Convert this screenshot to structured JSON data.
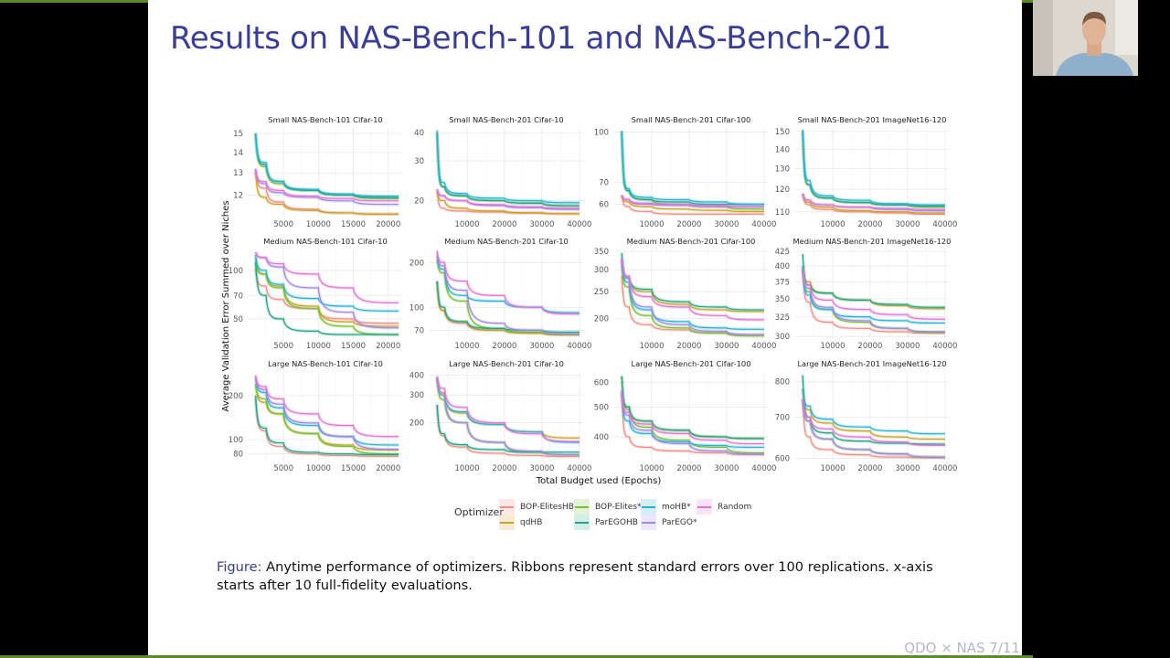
{
  "slide": {
    "title": "Results on NAS-Bench-101 and NAS-Bench-201",
    "caption_label": "Figure:",
    "caption_text": " Anytime performance of optimizers. Ribbons represent standard errors over 100 replications. x-axis starts after 10 full-fidelity evaluations.",
    "footer": "QDO × NAS 7/11"
  },
  "colors": {
    "title": "#3a3d96",
    "accent_bar": "#5a8a2a"
  },
  "chart_data": {
    "type": "line",
    "ylabel": "Average Validation Error Summed over Niches",
    "xlabel": "Total Budget used (Epochs)",
    "legend": {
      "title": "Optimizer",
      "placement": "bottom",
      "entries": [
        {
          "name": "BOP-ElitesHB",
          "color": "#ef8f86"
        },
        {
          "name": "qdHB",
          "color": "#c9a227"
        },
        {
          "name": "BOP-Elites*",
          "color": "#78bf35"
        },
        {
          "name": "ParEGOHB",
          "color": "#22a487"
        },
        {
          "name": "moHB*",
          "color": "#26b3d6"
        },
        {
          "name": "ParEGO*",
          "color": "#9f88e6"
        },
        {
          "name": "Random",
          "color": "#e274d4"
        }
      ]
    },
    "grid": true,
    "y_scale": "log",
    "panels": [
      {
        "title": "Small NAS-Bench-101 Cifar-10",
        "xlim": [
          0,
          22000
        ],
        "xticks": [
          5000,
          10000,
          15000,
          20000
        ],
        "ylim": [
          11.1,
          15.3
        ],
        "yticks": [
          12,
          13,
          14,
          15
        ],
        "x": [
          1000,
          2500,
          5000,
          10000,
          15000,
          21500
        ],
        "series": [
          [
            13.2,
            12.3,
            11.7,
            11.4,
            11.25,
            11.2
          ],
          [
            13,
            11.9,
            11.6,
            11.35,
            11.25,
            11.2
          ],
          [
            15,
            13.3,
            12.5,
            12.2,
            12,
            11.85
          ],
          [
            15,
            13.4,
            12.6,
            12.2,
            12,
            11.9
          ],
          [
            15,
            13.5,
            12.6,
            12.25,
            12.05,
            11.95
          ],
          [
            13.2,
            12.5,
            12.1,
            11.9,
            11.75,
            11.6
          ],
          [
            13.1,
            12.6,
            12.2,
            11.95,
            11.85,
            11.75
          ]
        ]
      },
      {
        "title": "Small NAS-Bench-201 Cifar-10",
        "xlim": [
          0,
          41000
        ],
        "xticks": [
          10000,
          20000,
          30000,
          40000
        ],
        "ylim": [
          17,
          42
        ],
        "yticks": [
          20,
          30,
          40
        ],
        "x": [
          2000,
          4000,
          10000,
          20000,
          30000,
          40000
        ],
        "series": [
          [
            22,
            18.5,
            18,
            17.8,
            17.6,
            17.5
          ],
          [
            22,
            20,
            18.5,
            18,
            17.7,
            17.5
          ],
          [
            40,
            23,
            21,
            20,
            19.5,
            19
          ],
          [
            40,
            23,
            21,
            20,
            19.5,
            19
          ],
          [
            41,
            24,
            21.5,
            20.5,
            20,
            19.6
          ],
          [
            22.5,
            21,
            20,
            19,
            18.6,
            18.3
          ],
          [
            22.5,
            21,
            20,
            19.2,
            18.8,
            18.5
          ]
        ]
      },
      {
        "title": "Small NAS-Bench-201 Cifar-100",
        "xlim": [
          0,
          41000
        ],
        "xticks": [
          10000,
          20000,
          30000,
          40000
        ],
        "ylim": [
          55,
          103
        ],
        "yticks": [
          60,
          70,
          100
        ],
        "x": [
          2000,
          4000,
          10000,
          20000,
          30000,
          40000
        ],
        "series": [
          [
            64,
            59,
            57,
            56,
            56,
            56
          ],
          [
            64,
            61,
            59,
            58,
            57.5,
            57
          ],
          [
            100,
            66,
            62,
            60,
            59,
            58
          ],
          [
            100,
            66,
            62,
            61,
            60,
            60
          ],
          [
            101,
            67,
            63,
            62,
            61,
            60
          ],
          [
            64,
            62,
            60,
            59.5,
            59,
            59
          ],
          [
            64,
            62,
            60.5,
            60,
            59.5,
            59
          ]
        ]
      },
      {
        "title": "Small NAS-Bench-201 ImageNet16-120",
        "xlim": [
          0,
          41000
        ],
        "xticks": [
          10000,
          20000,
          30000,
          40000
        ],
        "ylim": [
          108,
          152
        ],
        "yticks": [
          110,
          120,
          130,
          140,
          150
        ],
        "x": [
          2000,
          4000,
          10000,
          20000,
          30000,
          40000
        ],
        "series": [
          [
            118,
            113,
            111,
            110,
            109.5,
            109
          ],
          [
            118,
            114,
            112,
            110.5,
            110,
            109.5
          ],
          [
            150,
            122,
            116,
            114,
            113,
            112
          ],
          [
            150,
            122,
            116,
            114,
            113,
            112.5
          ],
          [
            151,
            124,
            117,
            115,
            113.5,
            113
          ],
          [
            118,
            115,
            113,
            112,
            111,
            110.5
          ],
          [
            118,
            115,
            113,
            112,
            111.5,
            111
          ]
        ]
      },
      {
        "title": "Medium NAS-Bench-101 Cifar-10",
        "xlim": [
          0,
          22000
        ],
        "xticks": [
          5000,
          10000,
          15000,
          20000
        ],
        "ylim": [
          38,
          135
        ],
        "yticks": [
          50,
          70,
          100
        ],
        "x": [
          1000,
          2500,
          5000,
          10000,
          15000,
          21500
        ],
        "series": [
          [
            103,
            80,
            66,
            58,
            50,
            47
          ],
          [
            115,
            95,
            80,
            60,
            48,
            45
          ],
          [
            120,
            95,
            78,
            58,
            45,
            40
          ],
          [
            112,
            70,
            50,
            42,
            40,
            40
          ],
          [
            125,
            100,
            82,
            67,
            60,
            56
          ],
          [
            130,
            120,
            105,
            78,
            55,
            44
          ],
          [
            130,
            120,
            110,
            95,
            78,
            63
          ]
        ]
      },
      {
        "title": "Medium NAS-Bench-201 Cifar-10",
        "xlim": [
          0,
          41000
        ],
        "xticks": [
          10000,
          20000,
          30000,
          40000
        ],
        "ylim": [
          62,
          245
        ],
        "yticks": [
          70,
          100,
          200
        ],
        "x": [
          2000,
          4000,
          10000,
          20000,
          30000,
          40000
        ],
        "series": [
          [
            150,
            95,
            78,
            70,
            67,
            66
          ],
          [
            150,
            95,
            80,
            70,
            67,
            65
          ],
          [
            210,
            170,
            110,
            72,
            68,
            66
          ],
          [
            150,
            100,
            80,
            72,
            70,
            68
          ],
          [
            220,
            180,
            120,
            110,
            100,
            92
          ],
          [
            230,
            190,
            130,
            78,
            70,
            66
          ],
          [
            240,
            200,
            150,
            120,
            100,
            90
          ]
        ]
      },
      {
        "title": "Medium NAS-Bench-201 Cifar-100",
        "xlim": [
          0,
          41000
        ],
        "xticks": [
          10000,
          20000,
          30000,
          40000
        ],
        "ylim": [
          170,
          355
        ],
        "yticks": [
          200,
          250,
          300,
          350
        ],
        "x": [
          2000,
          4000,
          10000,
          20000,
          30000,
          40000
        ],
        "series": [
          [
            285,
            220,
            190,
            182,
            178,
            175
          ],
          [
            320,
            280,
            250,
            225,
            215,
            212
          ],
          [
            310,
            260,
            205,
            185,
            177,
            173
          ],
          [
            345,
            280,
            255,
            230,
            220,
            215
          ],
          [
            330,
            270,
            215,
            195,
            185,
            183
          ],
          [
            325,
            280,
            220,
            190,
            180,
            175
          ],
          [
            330,
            285,
            240,
            220,
            205,
            198
          ]
        ]
      },
      {
        "title": "Medium NAS-Bench-201 ImageNet16-120",
        "xlim": [
          0,
          41000
        ],
        "xticks": [
          10000,
          20000,
          30000,
          40000
        ],
        "ylim": [
          298,
          428
        ],
        "yticks": [
          300,
          325,
          350,
          375,
          400,
          425
        ],
        "x": [
          2000,
          4000,
          10000,
          20000,
          30000,
          40000
        ],
        "series": [
          [
            395,
            345,
            318,
            310,
            306,
            304
          ],
          [
            400,
            375,
            358,
            348,
            340,
            336
          ],
          [
            395,
            360,
            335,
            318,
            310,
            305
          ],
          [
            420,
            370,
            358,
            348,
            342,
            338
          ],
          [
            400,
            355,
            335,
            325,
            320,
            317
          ],
          [
            395,
            365,
            338,
            320,
            310,
            306
          ],
          [
            395,
            370,
            348,
            335,
            328,
            322
          ]
        ]
      },
      {
        "title": "Large NAS-Bench-101 Cifar-10",
        "xlim": [
          0,
          22000
        ],
        "xticks": [
          5000,
          10000,
          15000,
          20000
        ],
        "ylim": [
          72,
          290
        ],
        "yticks": [
          80,
          100,
          200
        ],
        "x": [
          1000,
          2500,
          5000,
          10000,
          15000,
          21500
        ],
        "series": [
          [
            190,
            115,
            90,
            80,
            78,
            77
          ],
          [
            240,
            180,
            150,
            110,
            92,
            85
          ],
          [
            235,
            190,
            150,
            110,
            90,
            80
          ],
          [
            200,
            120,
            95,
            82,
            80,
            79
          ],
          [
            260,
            210,
            165,
            125,
            105,
            92
          ],
          [
            270,
            220,
            175,
            130,
            105,
            86
          ],
          [
            275,
            230,
            190,
            150,
            125,
            105
          ]
        ]
      },
      {
        "title": "Large NAS-Bench-201 Cifar-10",
        "xlim": [
          0,
          41000
        ],
        "xticks": [
          10000,
          20000,
          30000,
          40000
        ],
        "ylim": [
          115,
          420
        ],
        "yticks": [
          200,
          300,
          400
        ],
        "x": [
          2000,
          4000,
          10000,
          20000,
          30000,
          40000
        ],
        "series": [
          [
            260,
            165,
            140,
            128,
            124,
            122
          ],
          [
            390,
            310,
            230,
            195,
            175,
            160
          ],
          [
            380,
            280,
            200,
            150,
            130,
            125
          ],
          [
            260,
            170,
            145,
            135,
            130,
            130
          ],
          [
            385,
            300,
            235,
            195,
            175,
            150
          ],
          [
            390,
            300,
            200,
            150,
            132,
            125
          ],
          [
            395,
            330,
            250,
            200,
            170,
            152
          ]
        ]
      },
      {
        "title": "Large NAS-Bench-201 Cifar-100",
        "xlim": [
          0,
          41000
        ],
        "xticks": [
          10000,
          20000,
          30000,
          40000
        ],
        "ylim": [
          335,
          650
        ],
        "yticks": [
          400,
          500,
          600
        ],
        "x": [
          2000,
          4000,
          10000,
          20000,
          30000,
          40000
        ],
        "series": [
          [
            550,
            400,
            370,
            360,
            355,
            350
          ],
          [
            630,
            490,
            450,
            420,
            400,
            395
          ],
          [
            560,
            500,
            430,
            390,
            370,
            355
          ],
          [
            630,
            500,
            450,
            420,
            400,
            395
          ],
          [
            560,
            450,
            410,
            385,
            375,
            370
          ],
          [
            570,
            470,
            420,
            380,
            360,
            352
          ],
          [
            550,
            480,
            440,
            410,
            390,
            380
          ]
        ]
      },
      {
        "title": "Large NAS-Bench-201 ImageNet16-120",
        "xlim": [
          0,
          41000
        ],
        "xticks": [
          10000,
          20000,
          30000,
          40000
        ],
        "ylim": [
          595,
          830
        ],
        "yticks": [
          600,
          700,
          800
        ],
        "x": [
          2000,
          4000,
          10000,
          20000,
          30000,
          40000
        ],
        "series": [
          [
            750,
            650,
            620,
            608,
            603,
            601
          ],
          [
            780,
            720,
            685,
            665,
            650,
            645
          ],
          [
            750,
            690,
            645,
            620,
            610,
            603
          ],
          [
            820,
            700,
            660,
            640,
            635,
            633
          ],
          [
            780,
            730,
            695,
            675,
            665,
            658
          ],
          [
            750,
            690,
            645,
            620,
            610,
            603
          ],
          [
            750,
            700,
            670,
            650,
            638,
            630
          ]
        ]
      }
    ]
  }
}
